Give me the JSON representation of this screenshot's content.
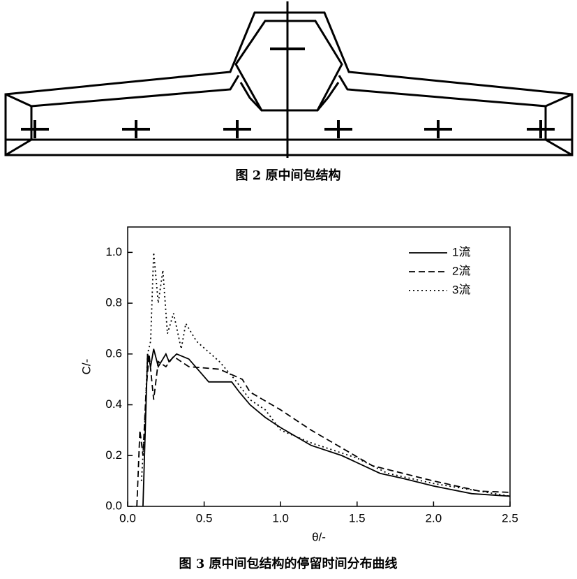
{
  "figure_2": {
    "caption": "图 2 原中间包结构"
  },
  "chart_data": {
    "type": "line",
    "caption": "图 3 原中间包结构的停留时间分布曲线",
    "x_label": "θ/-",
    "y_label": "C/-",
    "xlim": [
      0,
      2.5
    ],
    "ylim": [
      0,
      1.1
    ],
    "xticks": [
      {
        "value": 0,
        "label": "0.0"
      },
      {
        "value": 0.5,
        "label": "0.5"
      },
      {
        "value": 1,
        "label": "1.0"
      },
      {
        "value": 1.5,
        "label": "1.5"
      },
      {
        "value": 2,
        "label": "2.0"
      },
      {
        "value": 2.5,
        "label": "2.5"
      }
    ],
    "yticks": [
      {
        "value": 0,
        "label": "0.0"
      },
      {
        "value": 0.2,
        "label": "0.2"
      },
      {
        "value": 0.4,
        "label": "0.4"
      },
      {
        "value": 0.6,
        "label": "0.6"
      },
      {
        "value": 0.8,
        "label": "0.8"
      },
      {
        "value": 1,
        "label": "1.0"
      }
    ],
    "grid": false,
    "legend": "top-right",
    "series": [
      {
        "name": "1流",
        "color": "#000000",
        "dash": "solid",
        "x": [
          0.1,
          0.13,
          0.15,
          0.17,
          0.2,
          0.25,
          0.27,
          0.32,
          0.4,
          0.53,
          0.68,
          0.73,
          0.8,
          0.9,
          1.0,
          1.2,
          1.4,
          1.65,
          1.8,
          2.0,
          2.25,
          2.5
        ],
        "values": [
          0,
          0.6,
          0.55,
          0.62,
          0.55,
          0.6,
          0.57,
          0.6,
          0.58,
          0.49,
          0.49,
          0.45,
          0.4,
          0.35,
          0.31,
          0.24,
          0.2,
          0.13,
          0.11,
          0.08,
          0.05,
          0.04
        ]
      },
      {
        "name": "2流",
        "color": "#000000",
        "dash": "dashed",
        "x": [
          0.06,
          0.08,
          0.1,
          0.12,
          0.14,
          0.17,
          0.2,
          0.25,
          0.3,
          0.4,
          0.6,
          0.75,
          0.8,
          1.0,
          1.2,
          1.4,
          1.6,
          1.8,
          2.0,
          2.3,
          2.5
        ],
        "values": [
          0,
          0.3,
          0.2,
          0.45,
          0.6,
          0.42,
          0.57,
          0.55,
          0.59,
          0.55,
          0.54,
          0.5,
          0.45,
          0.38,
          0.3,
          0.23,
          0.16,
          0.13,
          0.1,
          0.06,
          0.055
        ]
      },
      {
        "name": "3流",
        "color": "#000000",
        "dash": "dotted",
        "x": [
          0.09,
          0.11,
          0.13,
          0.15,
          0.17,
          0.2,
          0.23,
          0.26,
          0.3,
          0.35,
          0.38,
          0.45,
          0.6,
          0.7,
          0.8,
          0.9,
          1.0,
          1.2,
          1.5,
          1.7,
          2.0,
          2.3,
          2.5
        ],
        "values": [
          0.1,
          0.3,
          0.6,
          0.65,
          1.0,
          0.8,
          0.93,
          0.68,
          0.76,
          0.62,
          0.72,
          0.65,
          0.57,
          0.5,
          0.42,
          0.38,
          0.3,
          0.25,
          0.19,
          0.13,
          0.09,
          0.06,
          0.04
        ]
      }
    ]
  }
}
